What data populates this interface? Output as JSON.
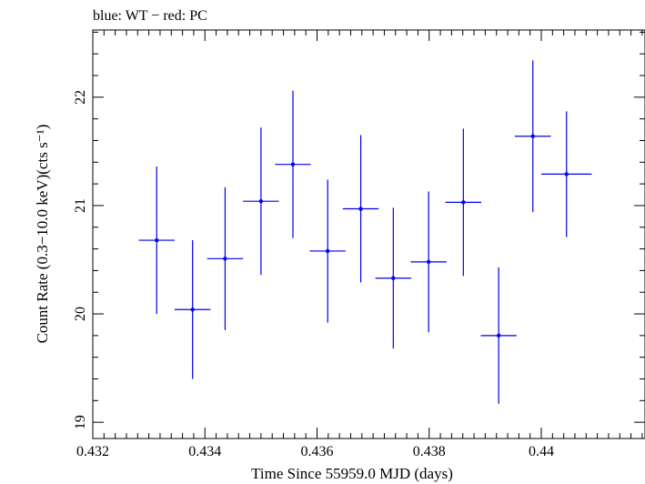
{
  "header_text": "blue: WT − red: PC",
  "chart_data": {
    "type": "scatter",
    "title": "blue: WT − red: PC",
    "xlabel": "Time Since 55959.0 MJD (days)",
    "ylabel": "Count Rate (0.3−10.0 keV)(cts s⁻¹)",
    "xlim": [
      0.432,
      0.44185
    ],
    "ylim": [
      18.85,
      22.62
    ],
    "xticks": [
      0.432,
      0.434,
      0.436,
      0.438,
      0.44
    ],
    "xtick_labels": [
      "0.432",
      "0.434",
      "0.436",
      "0.438",
      "0.44"
    ],
    "yticks": [
      19,
      20,
      21,
      22
    ],
    "ytick_labels": [
      "19",
      "20",
      "21",
      "22"
    ],
    "grid": false,
    "series": [
      {
        "color": "#0000ee",
        "points": [
          {
            "x": 0.43314,
            "xerr": 0.00032,
            "y": 20.68,
            "yerr": 0.68
          },
          {
            "x": 0.43378,
            "xerr": 0.00032,
            "y": 20.04,
            "yerr": 0.64
          },
          {
            "x": 0.43436,
            "xerr": 0.00032,
            "y": 20.51,
            "yerr": 0.66
          },
          {
            "x": 0.435,
            "xerr": 0.00032,
            "y": 21.04,
            "yerr": 0.68
          },
          {
            "x": 0.43557,
            "xerr": 0.00032,
            "y": 21.38,
            "yerr": 0.68
          },
          {
            "x": 0.43619,
            "xerr": 0.00032,
            "y": 20.58,
            "yerr": 0.66
          },
          {
            "x": 0.43678,
            "xerr": 0.00032,
            "y": 20.97,
            "yerr": 0.68
          },
          {
            "x": 0.43736,
            "xerr": 0.00032,
            "y": 20.33,
            "yerr": 0.65
          },
          {
            "x": 0.43799,
            "xerr": 0.00032,
            "y": 20.48,
            "yerr": 0.65
          },
          {
            "x": 0.43861,
            "xerr": 0.00032,
            "y": 21.03,
            "yerr": 0.68
          },
          {
            "x": 0.43924,
            "xerr": 0.00032,
            "y": 19.8,
            "yerr": 0.63
          },
          {
            "x": 0.43985,
            "xerr": 0.00032,
            "y": 21.64,
            "yerr": 0.7
          },
          {
            "x": 0.44045,
            "xerr": 0.00045,
            "y": 21.29,
            "yerr": 0.58
          }
        ]
      }
    ]
  }
}
